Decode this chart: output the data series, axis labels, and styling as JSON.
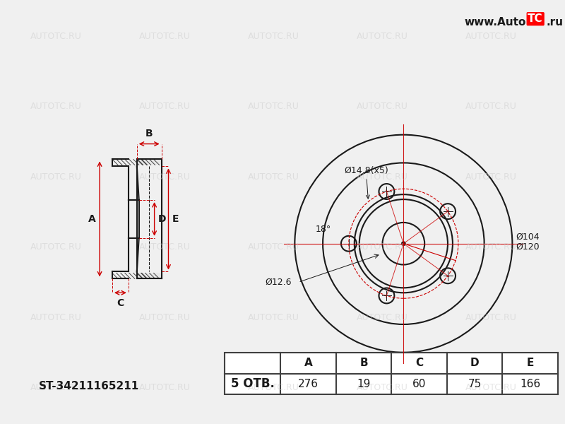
{
  "bg_color": "#f0f0f0",
  "title_url": "www.AutoTC.ru",
  "part_number": "ST-34211165211",
  "holes": 5,
  "label_otv": "5 ОТВ.",
  "dimensions": {
    "A": "276",
    "B": "19",
    "C": "60",
    "D": "75",
    "E": "166"
  },
  "annotations_front": {
    "d_bolt": "Ø14.8(x5)",
    "d_center_hole": "Ø12.6",
    "d_pcd": "Ø120",
    "d_hub": "Ø104",
    "angle": "18°"
  },
  "line_color": "#1a1a1a",
  "red_color": "#cc0000",
  "dim_color": "#cc0000",
  "watermark_color": "#cccccc",
  "table_header_color": "#404040",
  "table_bg": "#ffffff"
}
